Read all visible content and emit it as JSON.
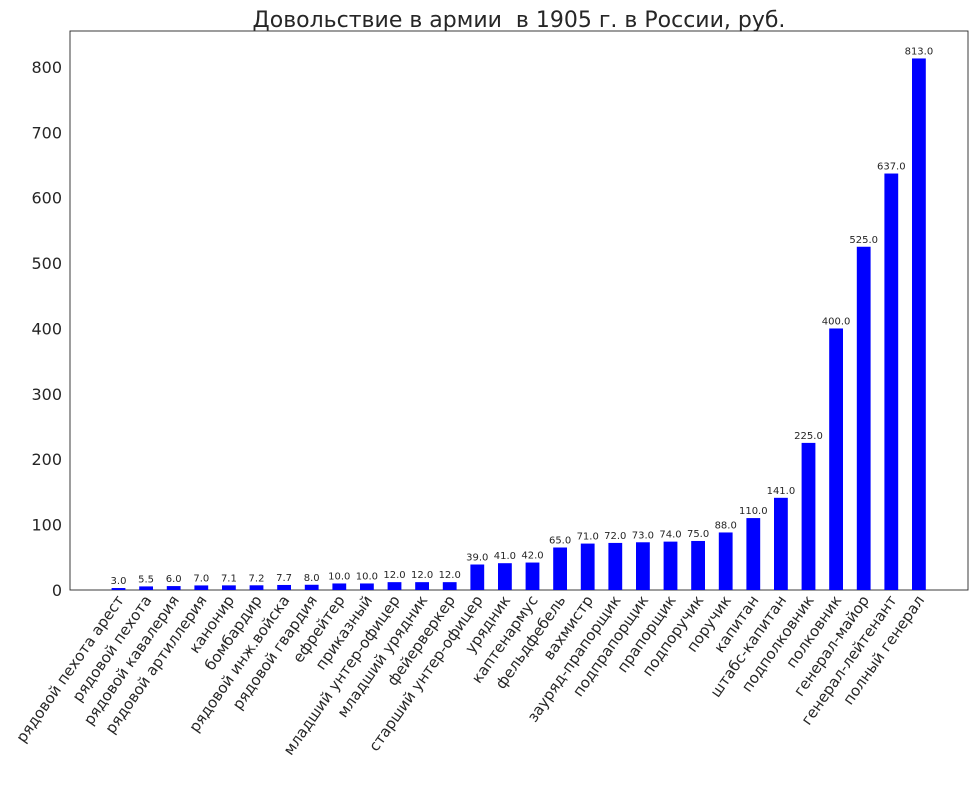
{
  "chart_data": {
    "type": "bar",
    "title": "Довольствие в армии  в 1905 г. в России, руб.",
    "xlabel": "",
    "ylabel": "",
    "ylim": [
      0,
      855
    ],
    "yticks": [
      0,
      100,
      200,
      300,
      400,
      500,
      600,
      700,
      800
    ],
    "grid": false,
    "bar_color": "#0000ff",
    "categories": [
      "рядовой пехота арест",
      "рядовой пехота",
      "рядовой кавалерия",
      "рядовой артиллерия",
      "канонир",
      "бомбардир",
      "рядовой инж.войска",
      "рядовой гвардия",
      "ефрейтер",
      "приказный",
      "младший унтер-офицер",
      "младший урядник",
      "фейерверкер",
      "старший унтер-офицер",
      "урядник",
      "каптенармус",
      "фельдфебель",
      "вахмистр",
      "зауряд-прапорщик",
      "подпрапорщик",
      "прапорщик",
      "подпоручик",
      "поручик",
      "капитан",
      "штабс-капитан",
      "подполковник",
      "полковник",
      "генерал-майор",
      "генерал-лейтенант",
      "полный генерал"
    ],
    "values": [
      3.0,
      5.5,
      6.0,
      7.0,
      7.1,
      7.2,
      7.7,
      8.0,
      10.0,
      10.0,
      12.0,
      12.0,
      12.0,
      39.0,
      41.0,
      42.0,
      65.0,
      71.0,
      72.0,
      73.0,
      74.0,
      75.0,
      88.0,
      110.0,
      141.0,
      225.0,
      400.0,
      525.0,
      637.0,
      813.0
    ],
    "data_labels": [
      "3.0",
      "5.5",
      "6.0",
      "7.0",
      "7.1",
      "7.2",
      "7.7",
      "8.0",
      "10.0",
      "10.0",
      "12.0",
      "12.0",
      "12.0",
      "39.0",
      "41.0",
      "42.0",
      "65.0",
      "71.0",
      "72.0",
      "73.0",
      "74.0",
      "75.0",
      "88.0",
      "110.0",
      "141.0",
      "225.0",
      "400.0",
      "525.0",
      "637.0",
      "813.0"
    ]
  }
}
